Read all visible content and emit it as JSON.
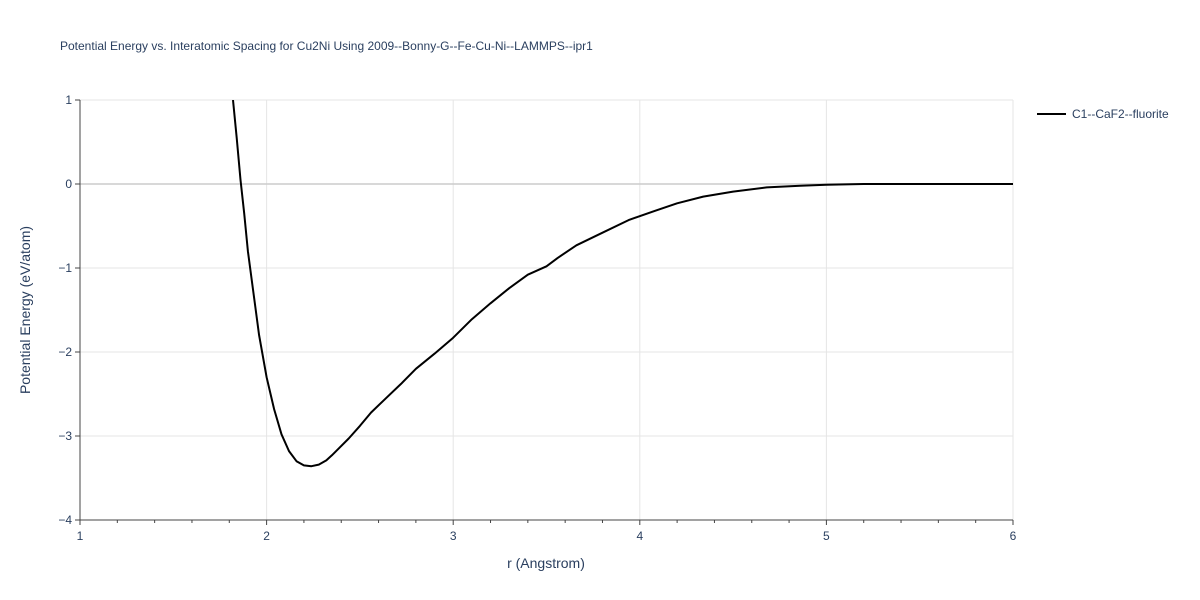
{
  "chart_data": {
    "type": "line",
    "title": "Potential Energy vs. Interatomic Spacing for Cu2Ni Using 2009--Bonny-G--Fe-Cu-Ni--LAMMPS--ipr1",
    "xlabel": "r (Angstrom)",
    "ylabel": "Potential Energy (eV/atom)",
    "xlim": [
      1,
      6
    ],
    "ylim": [
      -4,
      1
    ],
    "x_ticks": [
      1,
      2,
      3,
      4,
      5,
      6
    ],
    "x_tick_labels": [
      "1",
      "2",
      "3",
      "4",
      "5",
      "6"
    ],
    "y_ticks": [
      1,
      0,
      -1,
      -2,
      -3,
      -4
    ],
    "y_tick_labels": [
      "1",
      "0",
      "−1",
      "−2",
      "−3",
      "−4"
    ],
    "grid": true,
    "legend_position": "top-right",
    "series": [
      {
        "name": "C1--CaF2--fluorite",
        "color": "#000000",
        "x": [
          1.82,
          1.84,
          1.86,
          1.88,
          1.9,
          1.93,
          1.96,
          2.0,
          2.04,
          2.08,
          2.12,
          2.16,
          2.2,
          2.24,
          2.28,
          2.32,
          2.35,
          2.39,
          2.44,
          2.5,
          2.56,
          2.64,
          2.72,
          2.8,
          2.9,
          3.0,
          3.1,
          3.2,
          3.3,
          3.4,
          3.5,
          3.56,
          3.66,
          3.8,
          3.94,
          4.08,
          4.2,
          4.34,
          4.5,
          4.68,
          4.86,
          5.0,
          5.2,
          5.5,
          5.8,
          6.0
        ],
        "y": [
          1.0,
          0.55,
          0.05,
          -0.35,
          -0.8,
          -1.3,
          -1.8,
          -2.3,
          -2.68,
          -2.98,
          -3.18,
          -3.3,
          -3.35,
          -3.36,
          -3.34,
          -3.29,
          -3.23,
          -3.14,
          -3.03,
          -2.88,
          -2.72,
          -2.55,
          -2.38,
          -2.2,
          -2.02,
          -1.83,
          -1.61,
          -1.42,
          -1.24,
          -1.08,
          -0.98,
          -0.88,
          -0.73,
          -0.58,
          -0.43,
          -0.32,
          -0.23,
          -0.15,
          -0.09,
          -0.04,
          -0.02,
          -0.01,
          0.0,
          0.0,
          0.0,
          0.0
        ]
      }
    ]
  }
}
